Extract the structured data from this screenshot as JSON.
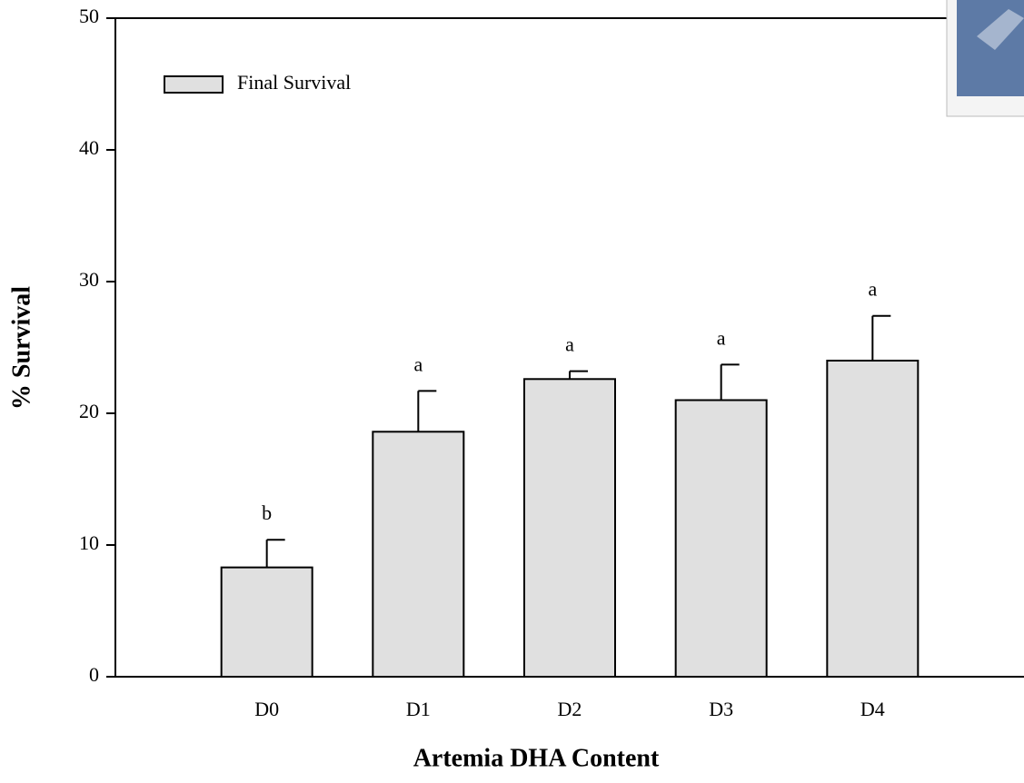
{
  "chart_data": {
    "type": "bar",
    "x_label": "Artemia DHA Content",
    "y_label": "% Survival",
    "categories": [
      "D0",
      "D1",
      "D2",
      "D3",
      "D4"
    ],
    "series": [
      {
        "name": "Final Survival",
        "color": "#e0e0e0",
        "values": [
          8.3,
          18.6,
          22.6,
          21.0,
          24.0
        ],
        "errors": [
          2.1,
          3.1,
          0.6,
          2.7,
          3.4
        ]
      }
    ],
    "annotations": [
      "b",
      "a",
      "a",
      "a",
      "a"
    ],
    "ylim": [
      0,
      50
    ],
    "yticks": [
      0,
      10,
      20,
      30,
      40,
      50
    ],
    "legend": "upper left"
  }
}
